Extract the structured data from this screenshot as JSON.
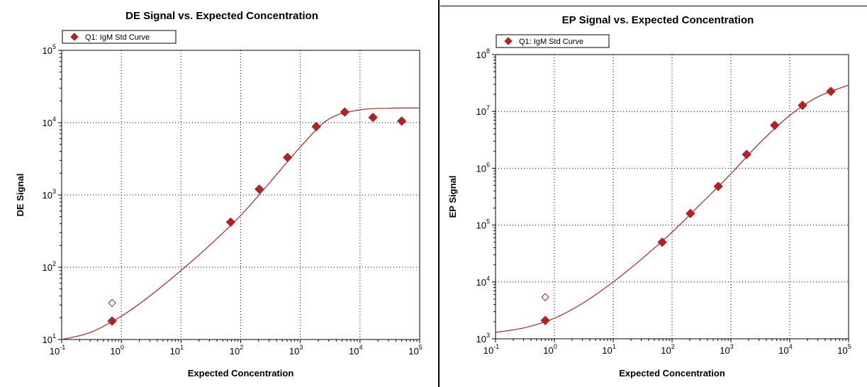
{
  "chart_data": [
    {
      "type": "scatter",
      "title": "DE Signal vs. Expected Concentration",
      "xlabel": "Expected Concentration",
      "ylabel": "DE Signal",
      "xscale": "log",
      "yscale": "log",
      "xlim": [
        0.1,
        100000
      ],
      "ylim": [
        10,
        100000
      ],
      "x_ticks": [
        {
          "base": "10",
          "exp": "-1"
        },
        {
          "base": "10",
          "exp": "0"
        },
        {
          "base": "10",
          "exp": "1"
        },
        {
          "base": "10",
          "exp": "2"
        },
        {
          "base": "10",
          "exp": "3"
        },
        {
          "base": "10",
          "exp": "4"
        },
        {
          "base": "10",
          "exp": "5"
        }
      ],
      "y_ticks": [
        {
          "base": "10",
          "exp": "1"
        },
        {
          "base": "10",
          "exp": "2"
        },
        {
          "base": "10",
          "exp": "3"
        },
        {
          "base": "10",
          "exp": "4"
        },
        {
          "base": "10",
          "exp": "5"
        }
      ],
      "grid": "dotted",
      "legend_placement": "top-left",
      "series_color": "#b22222",
      "series": [
        {
          "name": "Q1: IgM Std Curve",
          "points": [
            {
              "x": 0.7,
              "y": 18
            },
            {
              "x": 68,
              "y": 420
            },
            {
              "x": 205,
              "y": 1200
            },
            {
              "x": 610,
              "y": 3300
            },
            {
              "x": 1850,
              "y": 8800
            },
            {
              "x": 5550,
              "y": 14000
            },
            {
              "x": 16500,
              "y": 11800
            },
            {
              "x": 50000,
              "y": 10500
            }
          ],
          "excluded_points": [
            {
              "x": 0.7,
              "y": 32
            }
          ],
          "fit_curve": [
            {
              "x": 0.1,
              "y": 10
            },
            {
              "x": 0.3,
              "y": 12.5
            },
            {
              "x": 1,
              "y": 21
            },
            {
              "x": 3,
              "y": 40
            },
            {
              "x": 10,
              "y": 90
            },
            {
              "x": 30,
              "y": 200
            },
            {
              "x": 100,
              "y": 520
            },
            {
              "x": 300,
              "y": 1450
            },
            {
              "x": 1000,
              "y": 4600
            },
            {
              "x": 3000,
              "y": 11200
            },
            {
              "x": 10000,
              "y": 15000
            },
            {
              "x": 30000,
              "y": 15800
            },
            {
              "x": 100000,
              "y": 16000
            }
          ]
        }
      ]
    },
    {
      "type": "scatter",
      "title": "EP Signal vs. Expected Concentration",
      "xlabel": "Expected Concentration",
      "ylabel": "EP Signal",
      "xscale": "log",
      "yscale": "log",
      "xlim": [
        0.1,
        100000
      ],
      "ylim": [
        1000,
        100000000
      ],
      "x_ticks": [
        {
          "base": "10",
          "exp": "-1"
        },
        {
          "base": "10",
          "exp": "0"
        },
        {
          "base": "10",
          "exp": "1"
        },
        {
          "base": "10",
          "exp": "2"
        },
        {
          "base": "10",
          "exp": "3"
        },
        {
          "base": "10",
          "exp": "4"
        },
        {
          "base": "10",
          "exp": "5"
        }
      ],
      "y_ticks": [
        {
          "base": "10",
          "exp": "3"
        },
        {
          "base": "10",
          "exp": "4"
        },
        {
          "base": "10",
          "exp": "5"
        },
        {
          "base": "10",
          "exp": "6"
        },
        {
          "base": "10",
          "exp": "7"
        },
        {
          "base": "10",
          "exp": "8"
        }
      ],
      "grid": "dotted",
      "legend_placement": "top-left",
      "series_color": "#b22222",
      "series": [
        {
          "name": "Q1: IgM Std Curve",
          "points": [
            {
              "x": 0.7,
              "y": 2100
            },
            {
              "x": 68,
              "y": 50000
            },
            {
              "x": 205,
              "y": 160000
            },
            {
              "x": 610,
              "y": 480000
            },
            {
              "x": 1850,
              "y": 1750000
            },
            {
              "x": 5550,
              "y": 5700000
            },
            {
              "x": 16500,
              "y": 12800000
            },
            {
              "x": 50000,
              "y": 22500000
            }
          ],
          "excluded_points": [
            {
              "x": 0.7,
              "y": 5400
            }
          ],
          "fit_curve": [
            {
              "x": 0.1,
              "y": 1300
            },
            {
              "x": 0.3,
              "y": 1550
            },
            {
              "x": 1,
              "y": 2300
            },
            {
              "x": 3,
              "y": 4200
            },
            {
              "x": 10,
              "y": 10000
            },
            {
              "x": 30,
              "y": 25000
            },
            {
              "x": 100,
              "y": 75000
            },
            {
              "x": 300,
              "y": 230000
            },
            {
              "x": 1000,
              "y": 800000
            },
            {
              "x": 3000,
              "y": 2700000
            },
            {
              "x": 10000,
              "y": 8500000
            },
            {
              "x": 30000,
              "y": 18000000
            },
            {
              "x": 100000,
              "y": 29000000
            }
          ]
        }
      ]
    }
  ]
}
